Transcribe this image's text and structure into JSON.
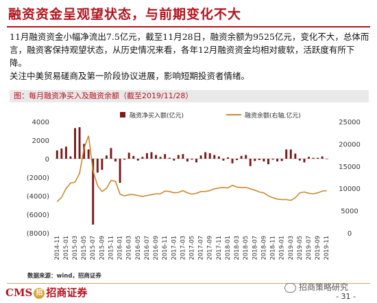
{
  "title": "融资资金呈观望状态，与前期变化不大",
  "paragraphs": [
    "11月融资资金小幅净流出7.5亿元，截至11月28日，融资余额为9525亿元，变化不大，总体而言，融资客保持观望状态，从历史情况来看，各年12月融资资金均相对疲软，活跃度有所下降。",
    "关注中美贸易磋商及第一阶段协议进展，影响短期投资者情绪。"
  ],
  "chart_title": "图：每月融资净买入及融资余额（截至2019/11/28）",
  "source": "数据来源：wind，招商证券",
  "footer": {
    "logo_text": "CMS",
    "logo_mark": "招",
    "logo_cn": "招商证券",
    "wechat": "招商策略研究",
    "page": "- 31 -"
  },
  "colors": {
    "bar": "#7a1a1a",
    "line": "#c8892c",
    "title_red": "#b5121b"
  },
  "chart_data": {
    "type": "bar+line",
    "legend_position": "top",
    "categories": [
      "2014-11",
      "2014-12",
      "2015-01",
      "2015-02",
      "2015-03",
      "2015-04",
      "2015-05",
      "2015-06",
      "2015-07",
      "2015-08",
      "2015-09",
      "2015-10",
      "2015-11",
      "2015-12",
      "2016-01",
      "2016-02",
      "2016-03",
      "2016-04",
      "2016-05",
      "2016-06",
      "2016-07",
      "2016-08",
      "2016-09",
      "2016-10",
      "2016-11",
      "2016-12",
      "2017-01",
      "2017-02",
      "2017-03",
      "2017-04",
      "2017-05",
      "2017-06",
      "2017-07",
      "2017-08",
      "2017-09",
      "2017-10",
      "2017-11",
      "2017-12",
      "2018-01",
      "2018-02",
      "2018-03",
      "2018-04",
      "2018-05",
      "2018-06",
      "2018-07",
      "2018-08",
      "2018-09",
      "2018-10",
      "2018-11",
      "2018-12",
      "2019-01",
      "2019-02",
      "2019-03",
      "2019-04",
      "2019-05",
      "2019-06",
      "2019-07",
      "2019-08",
      "2019-09",
      "2019-10",
      "2019-11"
    ],
    "x_tick_labels": [
      "2014-11",
      "2015-01",
      "2015-03",
      "2015-05",
      "2015-07",
      "2015-09",
      "2015-11",
      "2016-01",
      "2016-03",
      "2016-05",
      "2016-07",
      "2016-09",
      "2016-11",
      "2017-01",
      "2017-03",
      "2017-05",
      "2017-07",
      "2017-09",
      "2017-11",
      "2018-01",
      "2018-03",
      "2018-05",
      "2018-07",
      "2018-09",
      "2018-11",
      "2019-01",
      "2019-03",
      "2019-05",
      "2019-07",
      "2019-09",
      "2019-11"
    ],
    "series": [
      {
        "name": "融资净买入额(亿元)",
        "type": "bar",
        "axis": "left",
        "values": [
          900,
          1100,
          1300,
          250,
          3300,
          3400,
          1600,
          1000,
          -7100,
          -1500,
          -1200,
          350,
          1150,
          -300,
          -2600,
          -100,
          650,
          300,
          -200,
          200,
          600,
          700,
          400,
          200,
          500,
          100,
          -200,
          400,
          500,
          -300,
          -100,
          -400,
          350,
          700,
          600,
          400,
          250,
          -200,
          150,
          -500,
          -150,
          300,
          400,
          -800,
          -250,
          -150,
          -300,
          -600,
          -100,
          -300,
          -250,
          1000,
          1000,
          550,
          -200,
          -400,
          200,
          100,
          100,
          250,
          -8
        ]
      },
      {
        "name": "融资余额(右轴,亿元)",
        "type": "line",
        "axis": "right",
        "values": [
          7000,
          8000,
          10000,
          11200,
          11400,
          13400,
          19000,
          21800,
          14000,
          10600,
          9300,
          10000,
          11800,
          11600,
          8700,
          8300,
          8600,
          8600,
          8400,
          8200,
          8400,
          8600,
          8800,
          8800,
          9400,
          9300,
          9000,
          9100,
          9500,
          9000,
          8700,
          8900,
          9300,
          9300,
          9500,
          9900,
          10100,
          10200,
          10100,
          10700,
          10300,
          10200,
          10200,
          9900,
          9600,
          9200,
          9000,
          8300,
          7900,
          7600,
          7500,
          7500,
          7300,
          7900,
          9000,
          9200,
          8900,
          8800,
          9000,
          9400,
          9500
        ]
      }
    ],
    "y_left": {
      "ticks": [
        "4000",
        "2000",
        "0",
        "(2000)",
        "(4000)",
        "(6000)",
        "(8000)"
      ],
      "range": [
        -8000,
        4000
      ]
    },
    "y_right": {
      "ticks": [
        "25000",
        "20000",
        "15000",
        "10000",
        "5000",
        "0"
      ],
      "range": [
        0,
        25000
      ]
    }
  }
}
